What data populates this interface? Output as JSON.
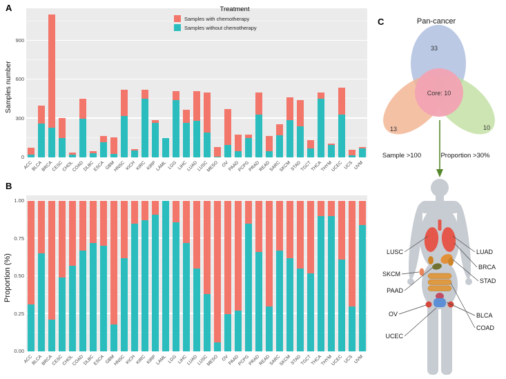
{
  "figure": {
    "panels": {
      "a": "A",
      "b": "B",
      "c": "C"
    }
  },
  "colors": {
    "with_chemo": "#F3766B",
    "without_chemo": "#2BBDBE",
    "panel_bg": "#EBEBEB",
    "grid_major": "#FFFFFF",
    "axis_text": "#444444",
    "venn_blue": "#AFC0E0",
    "venn_orange": "#F2B28E",
    "venn_green": "#BFDF9F",
    "venn_core_pink": "#F2A3B3",
    "arrow_green": "#55862B",
    "body_gray": "#C7CCD2",
    "lung_red": "#E4574A",
    "organ_orange": "#E2913B",
    "intestine_orange": "#DE9A43",
    "kidney_orange": "#CE8427",
    "pancreas_olive": "#717231",
    "skin_spot_orange": "#E8865C",
    "bladder_blue": "#5C8FD6",
    "ovary_red": "#D6473B",
    "uterus_red": "#C04D63"
  },
  "legend": {
    "title": "Treatment",
    "items": [
      {
        "label": "Samples with chemotherapy",
        "color": "#F3766B"
      },
      {
        "label": "Samples without chemotherapy",
        "color": "#2BBDBE"
      }
    ]
  },
  "chart_data": [
    {
      "id": "samples-number",
      "type": "bar",
      "stacked": true,
      "title": "",
      "xlabel": "",
      "ylabel": "Samples number",
      "ylim": [
        0,
        1150
      ],
      "yticks": [
        0,
        300,
        600,
        900
      ],
      "yticks_minor": [
        150,
        450,
        750,
        1050
      ],
      "grid": true,
      "legend_position": "top-inside",
      "categories": [
        "ACC",
        "BLCA",
        "BRCA",
        "CESC",
        "CHOL",
        "COAD",
        "DLBC",
        "ESCA",
        "GBM",
        "HNSC",
        "KICH",
        "KIRC",
        "KIRP",
        "LAML",
        "LGG",
        "LIHC",
        "LUAD",
        "LUSC",
        "MESO",
        "OV",
        "PAAD",
        "PCPG",
        "PRAD",
        "READ",
        "SARC",
        "SKCM",
        "STAD",
        "TGCT",
        "THCA",
        "THYM",
        "UCEC",
        "UCS",
        "UVM"
      ],
      "series": [
        {
          "name": "Samples with chemotherapy",
          "color": "#F3766B",
          "values": [
            52,
            140,
            870,
            157,
            17,
            150,
            13,
            50,
            125,
            200,
            10,
            70,
            25,
            0,
            70,
            105,
            230,
            310,
            75,
            280,
            130,
            27,
            170,
            115,
            85,
            175,
            200,
            65,
            50,
            10,
            210,
            40,
            13
          ]
        },
        {
          "name": "Samples without chemotherapy",
          "color": "#2BBDBE",
          "values": [
            23,
            260,
            230,
            148,
            23,
            300,
            33,
            115,
            28,
            320,
            55,
            450,
            265,
            150,
            440,
            265,
            280,
            190,
            5,
            95,
            48,
            150,
            330,
            50,
            170,
            290,
            240,
            70,
            450,
            95,
            330,
            17,
            67
          ]
        }
      ]
    },
    {
      "id": "proportion",
      "type": "bar",
      "stacked": true,
      "normalized": true,
      "title": "",
      "xlabel": "",
      "ylabel": "Proportion (%)",
      "ylim": [
        0,
        1
      ],
      "yticks": [
        0,
        0.25,
        0.5,
        0.75,
        1
      ],
      "ytick_labels": [
        "0.00",
        "0.25",
        "0.50",
        "0.75",
        "1.00"
      ],
      "yticks_minor": [
        0.125,
        0.375,
        0.625,
        0.875
      ],
      "grid": true,
      "categories": [
        "ACC",
        "BLCA",
        "BRCA",
        "CESC",
        "CHOL",
        "COAD",
        "DLBC",
        "ESCA",
        "GBM",
        "HNSC",
        "KICH",
        "KIRC",
        "KIRP",
        "LAML",
        "LGG",
        "LIHC",
        "LUAD",
        "LUSC",
        "MESO",
        "OV",
        "PAAD",
        "PCPG",
        "PRAD",
        "READ",
        "SARC",
        "SKCM",
        "STAD",
        "TGCT",
        "THCA",
        "THYM",
        "UCEC",
        "UCS",
        "UVM"
      ],
      "series": [
        {
          "name": "Samples with chemotherapy",
          "color": "#F3766B",
          "note": "remainder of 1"
        },
        {
          "name": "Samples without chemotherapy",
          "color": "#2BBDBE",
          "fractions": [
            0.31,
            0.65,
            0.21,
            0.49,
            0.57,
            0.67,
            0.72,
            0.7,
            0.18,
            0.62,
            0.85,
            0.87,
            0.91,
            1.0,
            0.86,
            0.72,
            0.55,
            0.38,
            0.06,
            0.25,
            0.27,
            0.85,
            0.66,
            0.3,
            0.67,
            0.62,
            0.55,
            0.52,
            0.9,
            0.9,
            0.61,
            0.3,
            0.84
          ]
        }
      ]
    }
  ],
  "venn": {
    "title": "Pan-cancer",
    "pan_cancer_count": "33",
    "sample_label": "Sample >100",
    "sample_count": "13",
    "proportion_label": "Proportion >30%",
    "proportion_count": "10",
    "core_label": "Core: 10"
  },
  "body": {
    "left_labels": [
      "LUSC",
      "SKCM",
      "PAAD",
      "OV",
      "UCEC"
    ],
    "right_labels": [
      "LUAD",
      "BRCA",
      "STAD",
      "BLCA",
      "COAD"
    ]
  }
}
